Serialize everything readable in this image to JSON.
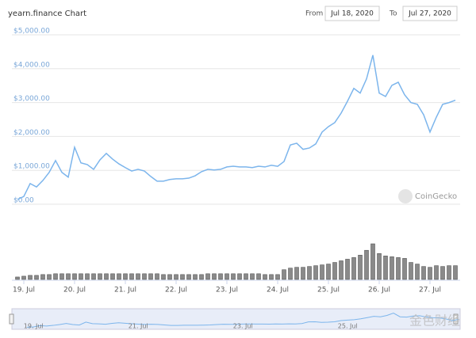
{
  "chart_data": {
    "type": "line",
    "title": "yearn.finance Chart",
    "from_label": "From",
    "from_date": "Jul 18, 2020",
    "to_label": "To",
    "to_date": "Jul 27, 2020",
    "brand": "CoinGecko",
    "watermark": "金色财经",
    "categories": [
      null,
      "19. Jul",
      null,
      null,
      null,
      null,
      null,
      null,
      null,
      "20. Jul",
      null,
      null,
      null,
      null,
      null,
      null,
      null,
      "21. Jul",
      null,
      null,
      null,
      null,
      null,
      null,
      null,
      "22. Jul",
      null,
      null,
      null,
      null,
      null,
      null,
      null,
      "23. Jul",
      null,
      null,
      null,
      null,
      null,
      null,
      null,
      "24. Jul",
      null,
      null,
      null,
      null,
      null,
      null,
      null,
      "25. Jul",
      null,
      null,
      null,
      null,
      null,
      null,
      null,
      "26. Jul",
      null,
      null,
      null,
      null,
      null,
      null,
      null,
      "27. Jul",
      null,
      null,
      null,
      null
    ],
    "values": [
      140,
      230,
      610,
      510,
      700,
      940,
      1290,
      940,
      800,
      1680,
      1220,
      1170,
      1030,
      1310,
      1500,
      1330,
      1190,
      1080,
      980,
      1030,
      980,
      820,
      680,
      680,
      730,
      750,
      750,
      770,
      840,
      960,
      1030,
      1010,
      1030,
      1100,
      1120,
      1100,
      1100,
      1080,
      1120,
      1100,
      1150,
      1120,
      1260,
      1750,
      1800,
      1620,
      1660,
      1780,
      2130,
      2290,
      2410,
      2690,
      3040,
      3420,
      3280,
      3700,
      4400,
      3280,
      3180,
      3510,
      3600,
      3230,
      3000,
      2950,
      2640,
      2130,
      2570,
      2950,
      3000,
      3070
    ],
    "color": "#7cb5ec",
    "volume": [
      3,
      4,
      5,
      5,
      6,
      6,
      7,
      7,
      7,
      7,
      7,
      7,
      7,
      7,
      7,
      7,
      7,
      7,
      7,
      7,
      7,
      7,
      7,
      6,
      6,
      6,
      6,
      6,
      6,
      6,
      7,
      7,
      7,
      7,
      7,
      7,
      7,
      7,
      7,
      6,
      6,
      6,
      12,
      14,
      15,
      15,
      16,
      17,
      18,
      19,
      21,
      23,
      25,
      27,
      30,
      36,
      44,
      32,
      29,
      28,
      27,
      26,
      21,
      19,
      16,
      15,
      17,
      16,
      17,
      17
    ],
    "volume_color": "#8a8a8a",
    "ylim": [
      0,
      5000
    ],
    "yticks": [
      {
        "value": 0,
        "label": "$0.00"
      },
      {
        "value": 1000,
        "label": "$1,000.00"
      },
      {
        "value": 2000,
        "label": "$2,000.00"
      },
      {
        "value": 3000,
        "label": "$3,000.00"
      },
      {
        "value": 4000,
        "label": "$4,000.00"
      },
      {
        "value": 5000,
        "label": "$5,000.00"
      }
    ],
    "grid": true
  }
}
